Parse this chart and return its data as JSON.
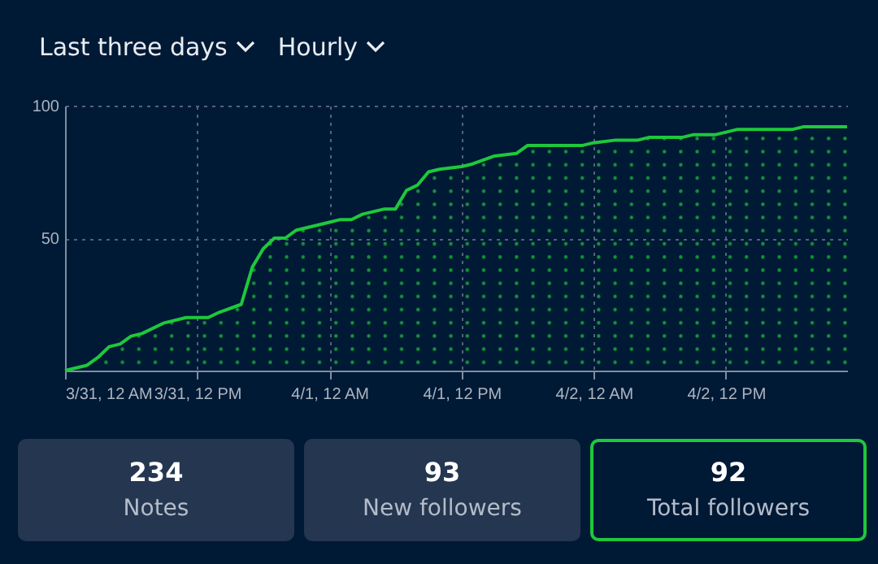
{
  "chart_data": [
    {
      "type": "area",
      "annotations": [
        "Last three days",
        "Hourly"
      ],
      "x": [
        "--03-31T00:00",
        "--03-31T02:00",
        "--03-31T03:00",
        "--03-31T04:00",
        "--03-31T05:00",
        "--03-31T06:00",
        "--03-31T07:00",
        "--03-31T09:00",
        "--03-31T11:00",
        "--03-31T13:00",
        "--03-31T14:00",
        "--03-31T16:00",
        "--03-31T17:00",
        "--03-31T18:00",
        "--03-31T19:00",
        "--03-31T20:00",
        "--03-31T21:00",
        "--03-31T22:00",
        "--04-01T00:00",
        "--04-01T01:00",
        "--04-01T02:00",
        "--04-01T03:00",
        "--04-01T04:00",
        "--04-01T05:00",
        "--04-01T06:00",
        "--04-01T07:00",
        "--04-01T08:00",
        "--04-01T09:00",
        "--04-01T10:00",
        "--04-01T12:00",
        "--04-01T13:00",
        "--04-01T15:00",
        "--04-01T17:00",
        "--04-01T18:00",
        "--04-01T23:00",
        "--04-02T00:00",
        "--04-02T02:00",
        "--04-02T04:00",
        "--04-02T05:00",
        "--04-02T08:00",
        "--04-02T09:00",
        "--04-02T11:00",
        "--04-02T13:00",
        "--04-02T18:00",
        "--04-02T19:00",
        "--04-02T23:00"
      ],
      "values": [
        0,
        2,
        5,
        9,
        10,
        13,
        14,
        18,
        20,
        20,
        22,
        25,
        39,
        46,
        50,
        50,
        53,
        54,
        56,
        57,
        57,
        59,
        60,
        61,
        61,
        68,
        70,
        75,
        76,
        77,
        78,
        81,
        82,
        85,
        85,
        86,
        87,
        87,
        88,
        88,
        89,
        89,
        91,
        91,
        92,
        92
      ],
      "color": "#1ec83c",
      "xlim": [
        "--03-31T00:00",
        "--04-02T23:00"
      ],
      "xticks": [
        {
          "value": "--03-31T00:00",
          "label": "3/31, 12 AM"
        },
        {
          "value": "--03-31T12:00",
          "label": "3/31, 12 PM"
        },
        {
          "value": "--04-01T00:00",
          "label": "4/1, 12 AM"
        },
        {
          "value": "--04-01T12:00",
          "label": "4/1, 12 PM"
        },
        {
          "value": "--04-02T00:00",
          "label": "4/2, 12 AM"
        },
        {
          "value": "--04-02T12:00",
          "label": "4/2, 12 PM"
        }
      ],
      "ylim": [
        0,
        100
      ],
      "yticks": [
        50,
        100
      ],
      "grid": true
    },
    {
      "type": "other",
      "annotations": [
        "234",
        "Notes",
        "93",
        "New followers",
        "92",
        "Total followers"
      ]
    }
  ]
}
